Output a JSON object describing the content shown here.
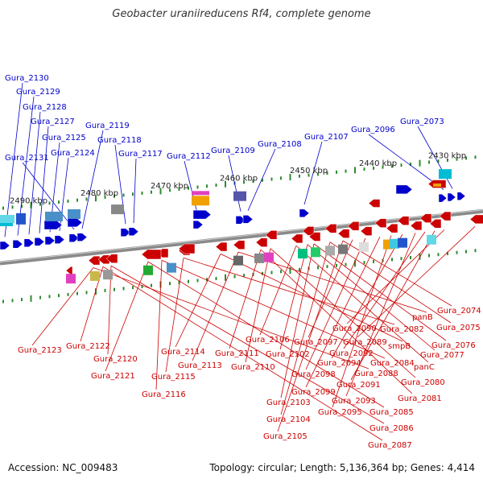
{
  "title": "Geobacter uraniireducens Rf4, complete genome",
  "accession": "Accession: NC_009483",
  "topology": "Topology: circular; Length: 5,136,364 bp; Genes: 4,414",
  "colors": {
    "forward": "#0000cc",
    "reverse": "#cc0000",
    "backbone": "#8a8a8a",
    "tick": "#2e8b2e"
  },
  "scale_labels": [
    "2490 kbp",
    "2480 kbp",
    "2470 kbp",
    "2460 kbp",
    "2450 kbp",
    "2440 kbp",
    "2430 kbp"
  ],
  "forward_genes": [
    "Gura_2130",
    "Gura_2129",
    "Gura_2128",
    "Gura_2127",
    "Gura_2125",
    "Gura_2124",
    "Gura_2131",
    "Gura_2119",
    "Gura_2118",
    "Gura_2117",
    "Gura_2112",
    "Gura_2109",
    "Gura_2108",
    "Gura_2107",
    "Gura_2096",
    "Gura_2073"
  ],
  "reverse_genes": [
    "Gura_2123",
    "Gura_2122",
    "Gura_2120",
    "Gura_2121",
    "Gura_2116",
    "Gura_2115",
    "Gura_2114",
    "Gura_2113",
    "Gura_2111",
    "Gura_2110",
    "Gura_2106",
    "Gura_2102",
    "Gura_2103",
    "Gura_2104",
    "Gura_2105",
    "Gura_2097",
    "Gura_2098",
    "Gura_2099",
    "Gura_2095",
    "Gura_2094",
    "Gura_2093",
    "Gura_2092",
    "Gura_2091",
    "Gura_2090",
    "Gura_2089",
    "Gura_2088",
    "Gura_2087",
    "Gura_2086",
    "Gura_2085",
    "Gura_2084",
    "Gura_2082",
    "smpB",
    "panB",
    "Gura_2081",
    "Gura_2080",
    "panC",
    "Gura_2077",
    "Gura_2076",
    "Gura_2075",
    "Gura_2074"
  ]
}
